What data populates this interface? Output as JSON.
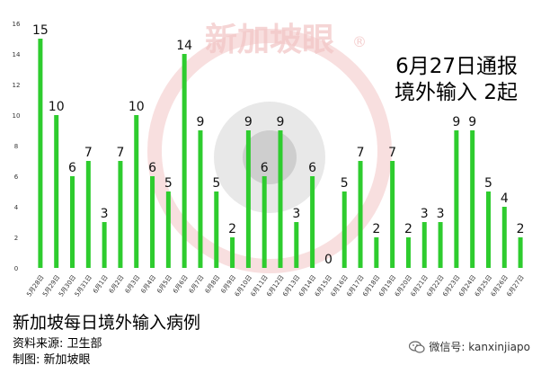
{
  "chart_data": {
    "type": "bar",
    "categories": [
      "5月28日",
      "5月29日",
      "5月30日",
      "5月31日",
      "6月1日",
      "6月2日",
      "6月3日",
      "6月4日",
      "6月5日",
      "6月6日",
      "6月7日",
      "6月8日",
      "6月9日",
      "6月10日",
      "6月11日",
      "6月12日",
      "6月13日",
      "6月14日",
      "6月15日",
      "6月16日",
      "6月17日",
      "6月18日",
      "6月19日",
      "6月20日",
      "6月21日",
      "6月22日",
      "6月23日",
      "6月24日",
      "6月25日",
      "6月26日",
      "6月27日"
    ],
    "values": [
      15,
      10,
      6,
      7,
      3,
      7,
      10,
      6,
      5,
      14,
      9,
      5,
      2,
      9,
      6,
      9,
      3,
      6,
      0,
      5,
      7,
      2,
      7,
      2,
      3,
      3,
      9,
      9,
      5,
      4,
      2
    ],
    "ylim": [
      0,
      16
    ],
    "yticks": [
      0,
      2,
      4,
      6,
      8,
      10,
      12,
      14,
      16
    ],
    "grid": false,
    "data_labels": true,
    "bar_color": "#2ecc2e",
    "title": "新加坡每日境外输入病例",
    "xlabel": "",
    "ylabel": ""
  },
  "headline": {
    "line1": "6月27日通报",
    "line2": "境外输入 2起"
  },
  "footer": {
    "title": "新加坡每日境外输入病例",
    "source": "资料来源:  卫生部",
    "credit": "制图:  新加坡眼"
  },
  "watermark": {
    "text": "新加坡眼",
    "mark": "®",
    "color": "#f2c4c4"
  },
  "wechat": {
    "icon": "wechat-icon",
    "text": "微信号: kanxinjiapo"
  }
}
